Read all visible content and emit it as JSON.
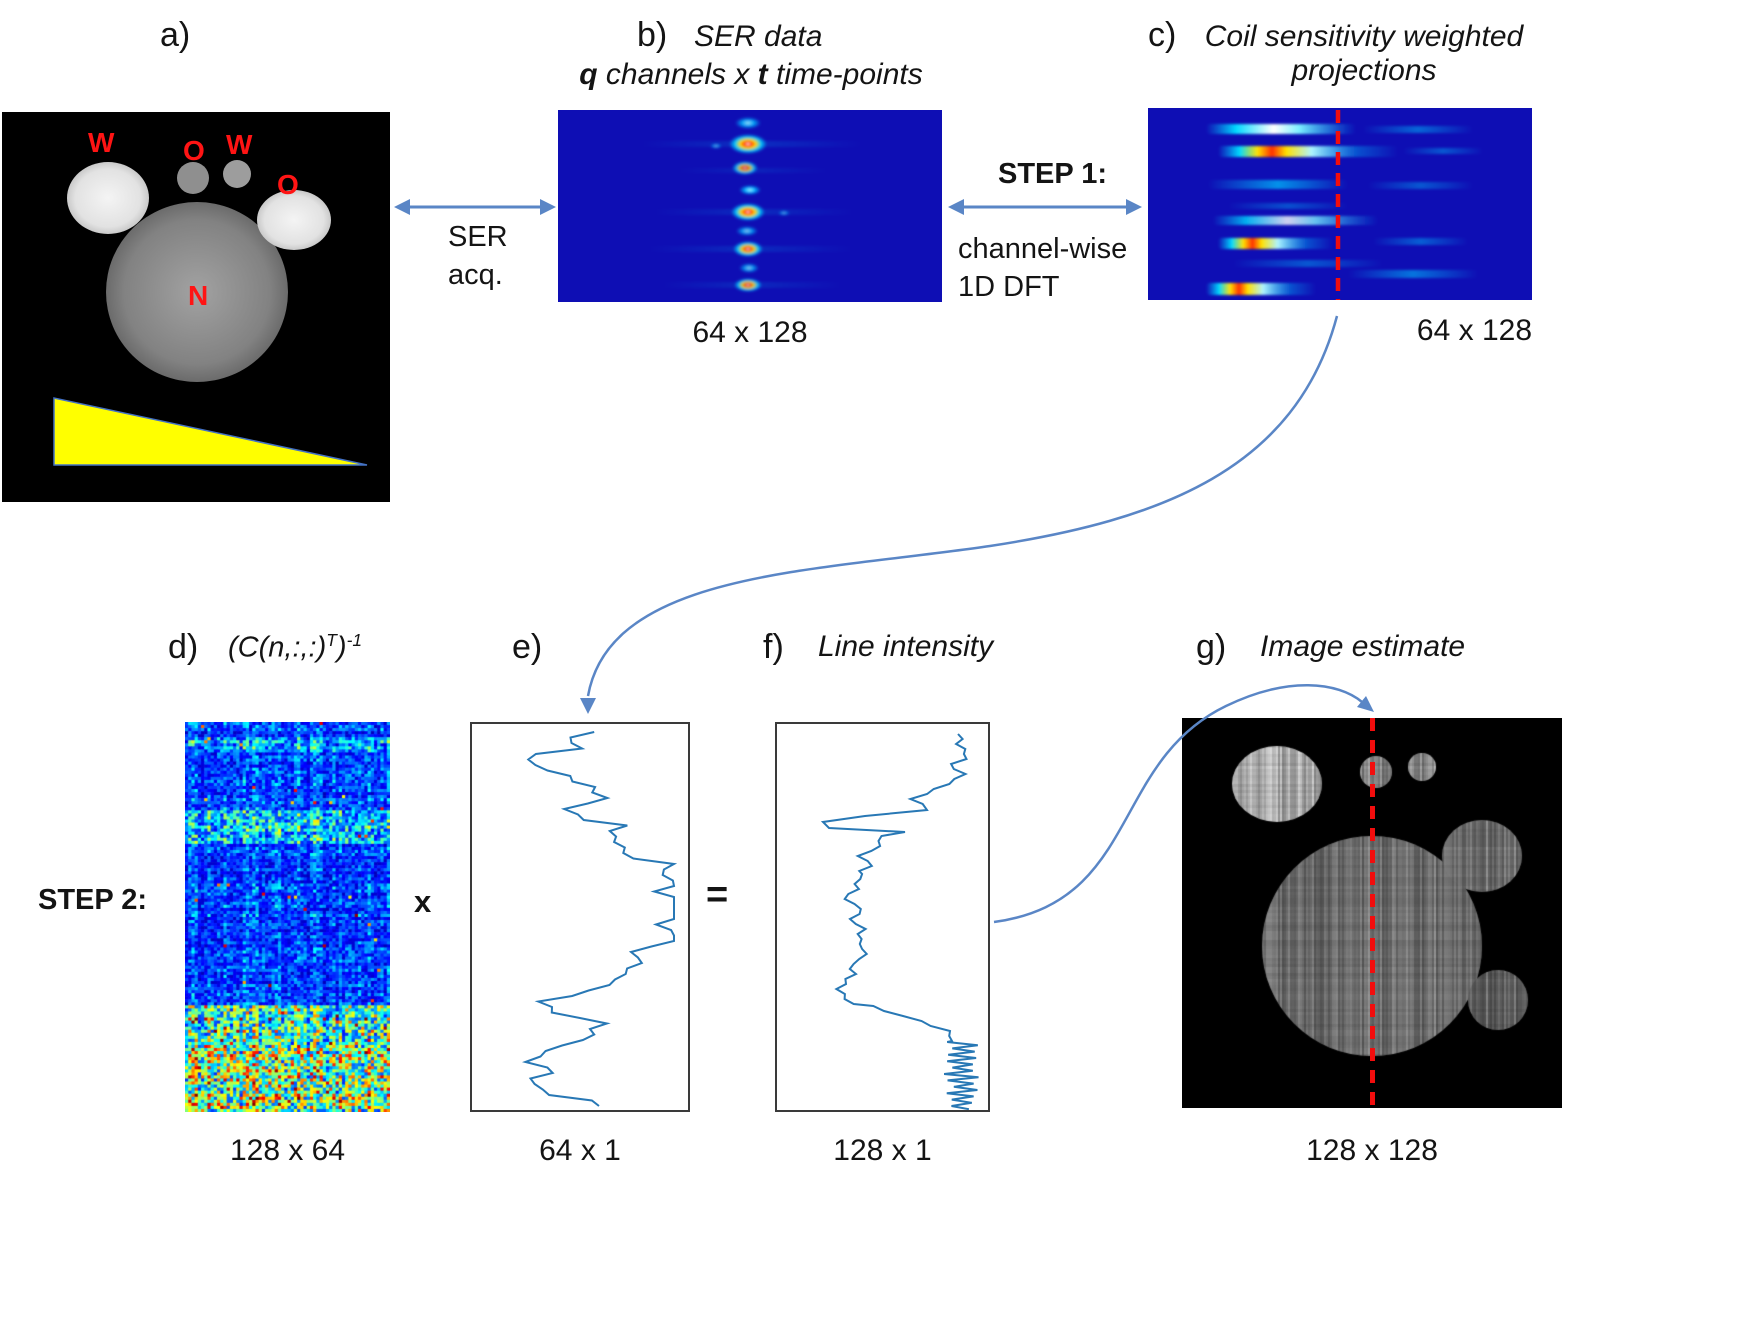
{
  "colors": {
    "arrow": "#5a86c6",
    "heatmap_bg": "#0e0eb4",
    "red_line": "#f20d0d",
    "plot_line": "#2878b5",
    "triangle": "#ffff00",
    "annotation": "#ff1414"
  },
  "panel_a": {
    "label": "a)",
    "mark_w1": "W",
    "mark_o1": "O",
    "mark_w2": "W",
    "mark_o2": "O",
    "mark_n": "N"
  },
  "panel_b": {
    "label": "b)",
    "title": "SER data",
    "sub_q": "q",
    "sub_mid": " channels x ",
    "sub_t": "t",
    "sub_end": " time-points",
    "dims": "64 x 128"
  },
  "panel_c": {
    "label": "c)",
    "title_line1": "Coil sensitivity weighted",
    "title_line2": "projections",
    "dims": "64 x 128"
  },
  "panel_d": {
    "label": "d)",
    "formula_base1": "(C(n,:,:)",
    "formula_sup1": "T",
    "formula_base2": ")",
    "formula_sup2": "-1",
    "dims": "128 x 64"
  },
  "panel_e": {
    "label": "e)",
    "dims": "64 x 1"
  },
  "panel_f": {
    "label": "f)",
    "title": "Line intensity",
    "dims": "128 x 1"
  },
  "panel_g": {
    "label": "g)",
    "title": "Image estimate",
    "dims": "128 x 128"
  },
  "connectors": {
    "ser_acq_line1": "SER",
    "ser_acq_line2": "acq.",
    "step1_label": "STEP 1:",
    "step1_desc_line1": "channel-wise",
    "step1_desc_line2": "1D DFT",
    "step2_label": "STEP 2:",
    "multiply": "x",
    "equals": "="
  }
}
